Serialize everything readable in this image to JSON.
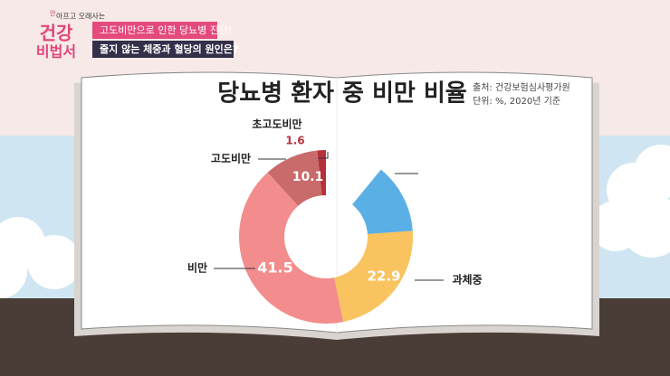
{
  "broadcast": {
    "tagline": "아프고 오래사는",
    "tagline_mark": "안",
    "logo_top": "건강",
    "logo_bottom": "비법서",
    "caption_1": "고도비만으로 인한 당뇨병 진단!",
    "caption_2": "줄지 않는 체중과 혈당의 원인은?"
  },
  "chart_data": {
    "type": "pie",
    "title": "당뇨병 환자 중 비만 비율",
    "source": "출처: 건강보험심사평가원",
    "unit": "단위: %, 2020년 기준",
    "categories": [
      "초고도비만",
      "고도비만",
      "비만",
      "과체중",
      null
    ],
    "values": [
      1.6,
      10.1,
      41.5,
      22.9,
      13
    ],
    "colors": [
      "#b5323b",
      "#c96a6b",
      "#f38c8c",
      "#f9c35f",
      "#5aafe4"
    ]
  }
}
